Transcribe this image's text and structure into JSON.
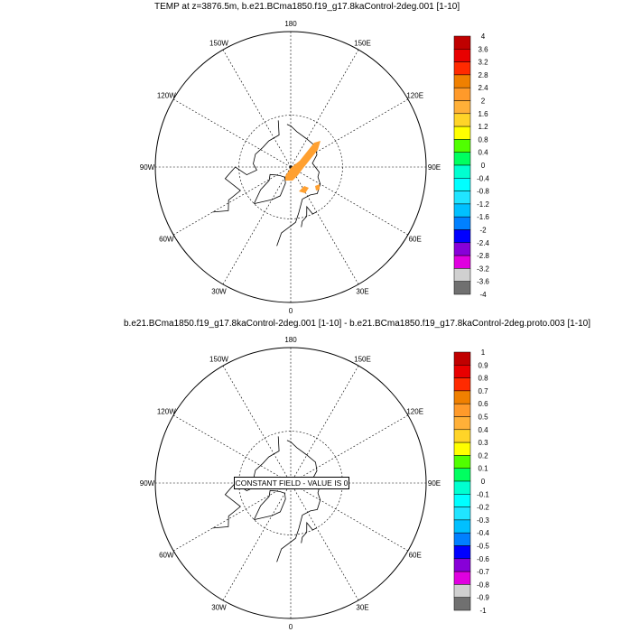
{
  "chart_data": [
    {
      "type": "heatmap",
      "title": "TEMP at z=3876.5m, b.e21.BCma1850.f19_g17.8kaControl-2deg.001 [1-10]",
      "projection": "north-polar-stereographic",
      "lon_labels": [
        "180",
        "150E",
        "120E",
        "90E",
        "60E",
        "30E",
        "0",
        "30W",
        "60W",
        "90W",
        "120W",
        "150W"
      ],
      "colorbar_labels": [
        "4",
        "3.6",
        "3.2",
        "2.8",
        "2.4",
        "2",
        "1.6",
        "1.2",
        "0.8",
        "0.4",
        "0",
        "-0.4",
        "-0.8",
        "-1.2",
        "-1.6",
        "-2",
        "-2.4",
        "-2.8",
        "-3.2",
        "-3.6",
        "-4"
      ],
      "annotation": ""
    },
    {
      "type": "heatmap",
      "title": "b.e21.BCma1850.f19_g17.8kaControl-2deg.001 [1-10] - b.e21.BCma1850.f19_g17.8kaControl-2deg.proto.003 [1-10]",
      "projection": "north-polar-stereographic",
      "lon_labels": [
        "180",
        "150E",
        "120E",
        "90E",
        "60E",
        "30E",
        "0",
        "30W",
        "60W",
        "90W",
        "120W",
        "150W"
      ],
      "colorbar_labels": [
        "1",
        "0.9",
        "0.8",
        "0.7",
        "0.6",
        "0.5",
        "0.4",
        "0.3",
        "0.2",
        "0.1",
        "0",
        "-0.1",
        "-0.2",
        "-0.3",
        "-0.4",
        "-0.5",
        "-0.6",
        "-0.7",
        "-0.8",
        "-0.9",
        "-1"
      ],
      "annotation": "CONSTANT FIELD - VALUE IS 0"
    }
  ],
  "colors": [
    "#c00000",
    "#e80000",
    "#ff2a00",
    "#f08000",
    "#ff9a2a",
    "#ffb038",
    "#ffd428",
    "#ffff00",
    "#50ff00",
    "#00ff60",
    "#00ffd0",
    "#00ffff",
    "#20e4ff",
    "#00c0ff",
    "#0080ff",
    "#0000ff",
    "#8800d8",
    "#e000e0",
    "#d0d0d0",
    "#707070"
  ],
  "field_color": "#ffa030"
}
